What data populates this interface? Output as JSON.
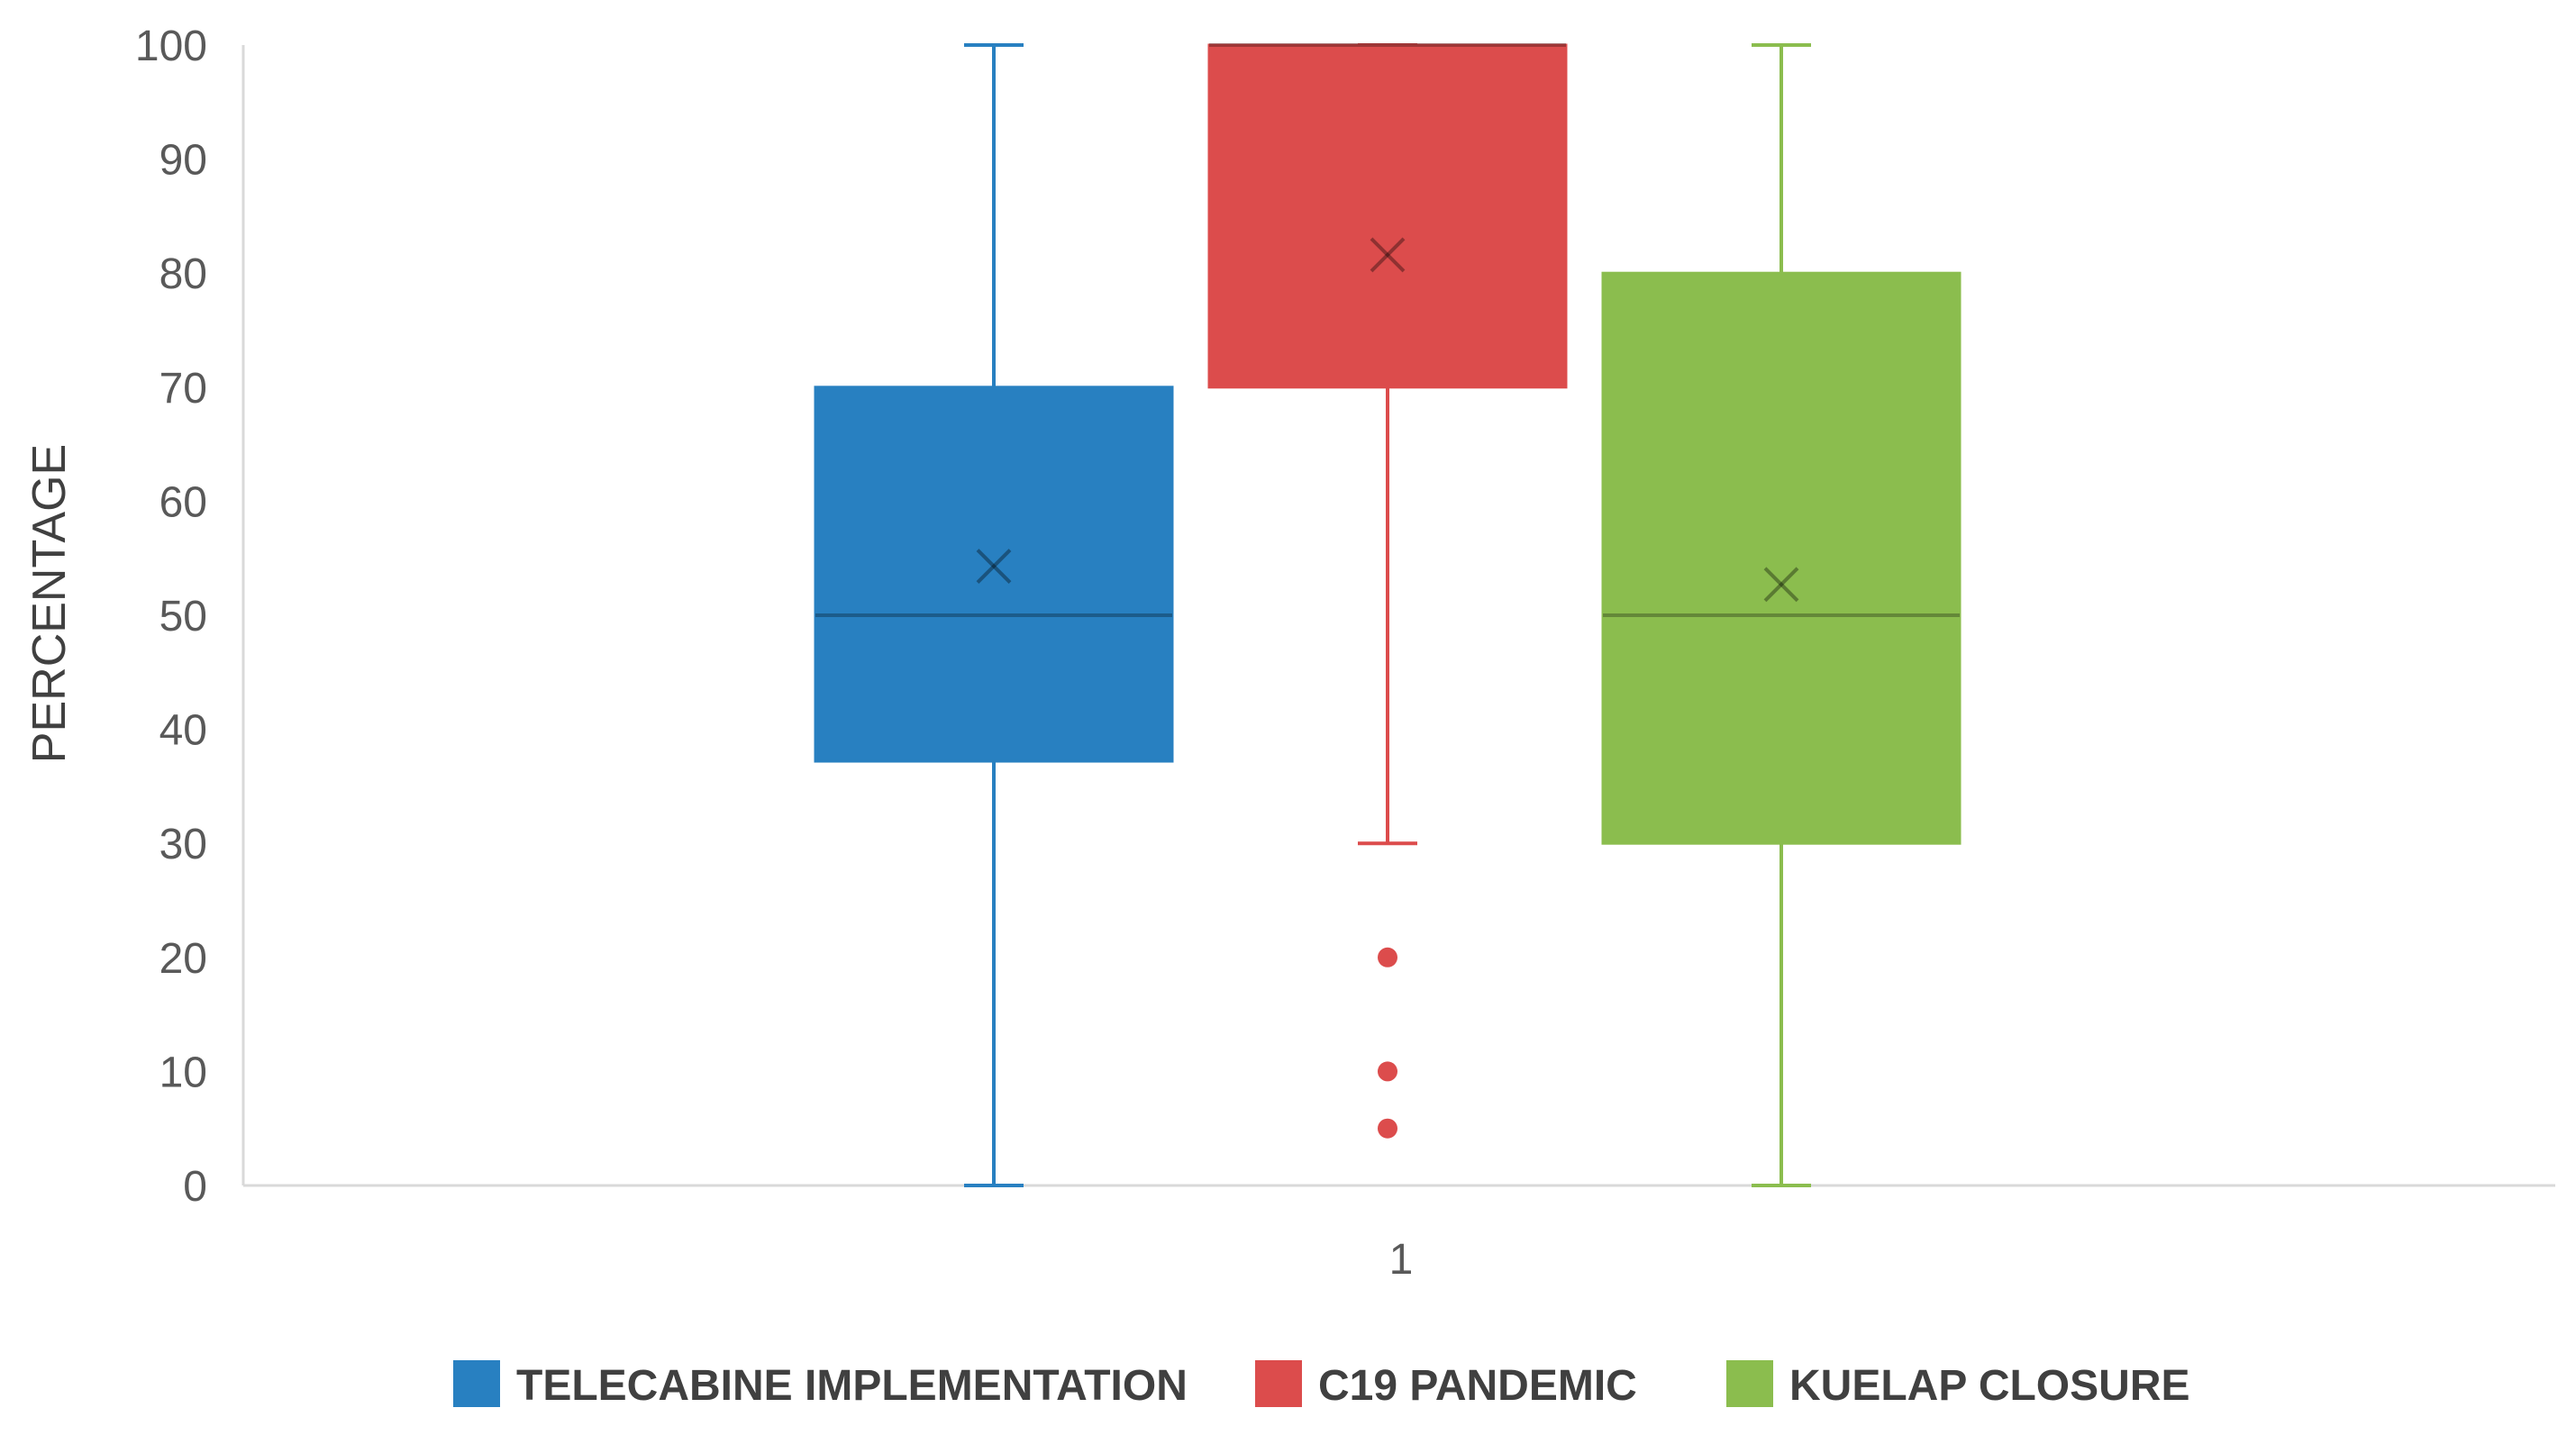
{
  "chart_data": {
    "type": "box",
    "ylabel": "PERCENTAGE",
    "xlabel": "",
    "categories": [
      "1"
    ],
    "ylim": [
      0,
      100
    ],
    "yticks": [
      0,
      10,
      20,
      30,
      40,
      50,
      60,
      70,
      80,
      90,
      100
    ],
    "grid": false,
    "legend_position": "bottom",
    "series": [
      {
        "name": "TELECABINE IMPLEMENTATION",
        "color": "#2880C1",
        "min": 0,
        "q1": 37.2,
        "median": 50,
        "q3": 70,
        "max": 100,
        "mean": 54.3,
        "outliers": []
      },
      {
        "name": "C19 PANDEMIC",
        "color": "#DC4C4C",
        "min": 30,
        "q1": 70,
        "median": 100,
        "q3": 100,
        "max": 100,
        "mean": 81.6,
        "outliers": [
          20,
          10,
          5
        ]
      },
      {
        "name": "KUELAP CLOSURE",
        "color": "#8BBD4E",
        "min": 0,
        "q1": 30,
        "median": 50,
        "q3": 80,
        "max": 100,
        "mean": 52.7,
        "outliers": []
      }
    ]
  }
}
